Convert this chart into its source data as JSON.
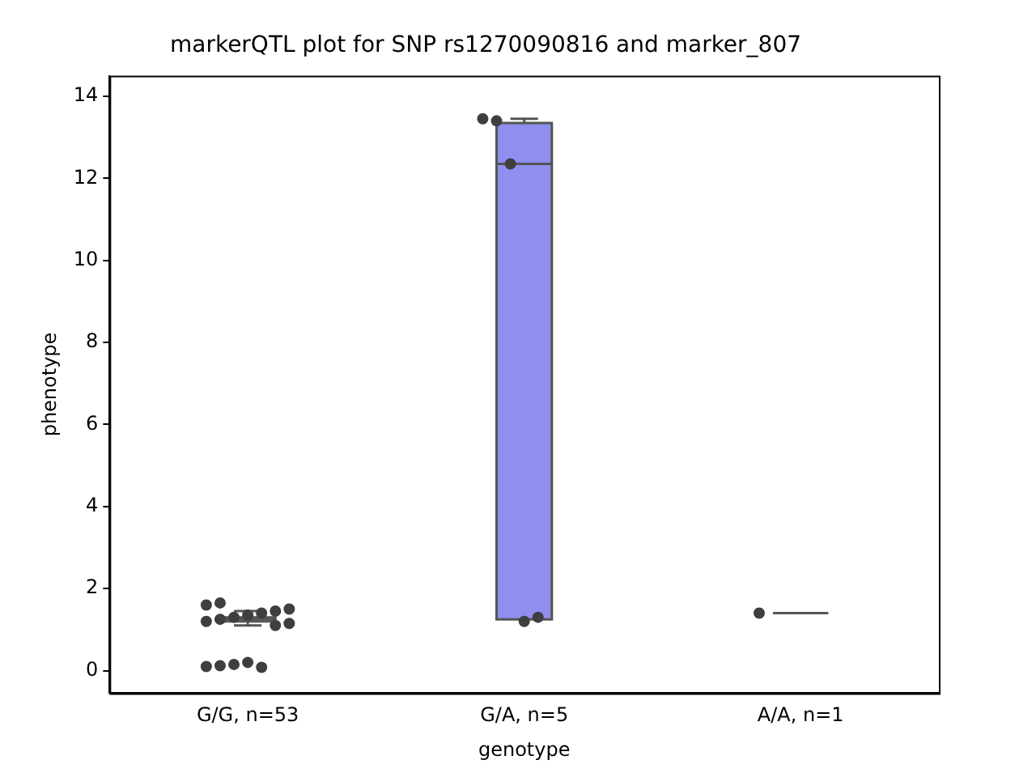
{
  "chart_data": {
    "type": "box",
    "title": "markerQTL plot for SNP rs1270090816 and marker_807",
    "xlabel": "genotype",
    "ylabel": "phenotype",
    "categories": [
      "G/G, n=53",
      "G/A, n=5",
      "A/A, n=1"
    ],
    "colors": [
      null,
      "#8f8fef",
      null
    ],
    "boxes": [
      {
        "low": 1.1,
        "q1": 1.2,
        "median": 1.25,
        "q3": 1.3,
        "high": 1.45
      },
      {
        "low": 1.25,
        "q1": 1.25,
        "median": 12.35,
        "q3": 13.35,
        "high": 13.45
      },
      {
        "low": 1.4,
        "q1": 1.4,
        "median": 1.4,
        "q3": 1.4,
        "high": 1.4
      }
    ],
    "series": [
      {
        "type": "scatter",
        "color": "#3f3f3f",
        "x": [
          "G/G, n=53",
          "G/G, n=53",
          "G/G, n=53",
          "G/G, n=53",
          "G/G, n=53",
          "G/G, n=53",
          "G/G, n=53",
          "G/G, n=53",
          "G/G, n=53",
          "G/G, n=53",
          "G/G, n=53",
          "G/G, n=53",
          "G/G, n=53",
          "G/G, n=53",
          "G/G, n=53",
          "G/G, n=53",
          "G/A, n=5",
          "G/A, n=5",
          "G/A, n=5",
          "G/A, n=5",
          "G/A, n=5",
          "A/A, n=1"
        ],
        "values": [
          0.1,
          0.12,
          0.15,
          0.2,
          0.08,
          1.1,
          1.15,
          1.2,
          1.25,
          1.3,
          1.35,
          1.4,
          1.45,
          1.5,
          1.6,
          1.65,
          13.45,
          13.4,
          12.35,
          1.2,
          1.3,
          1.4
        ]
      }
    ],
    "marker": "circle",
    "ylim": [
      -0.55,
      14.5
    ],
    "yticks": [
      0,
      2,
      4,
      6,
      8,
      10,
      12,
      14
    ],
    "grid": false,
    "legend": false
  }
}
